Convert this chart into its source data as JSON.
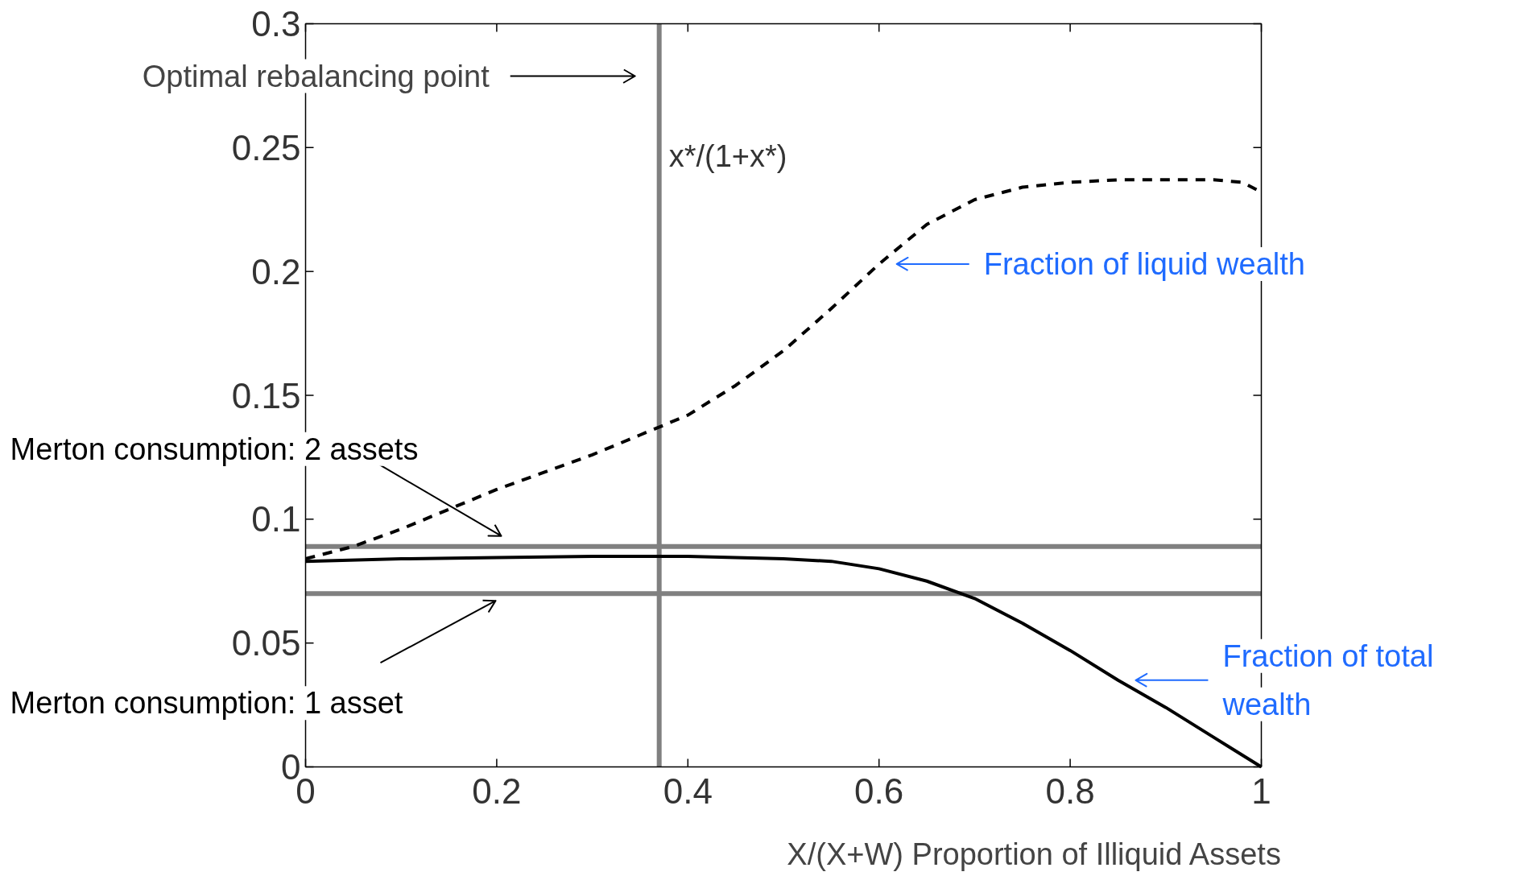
{
  "chart_data": {
    "type": "line",
    "xlabel": "X/(X+W) Proportion of Illiquid Assets",
    "xlim": [
      0,
      1
    ],
    "xticks": [
      0,
      0.2,
      0.4,
      0.6,
      0.8,
      1
    ],
    "ylim": [
      0,
      0.3
    ],
    "yticks": [
      0,
      0.05,
      0.1,
      0.15,
      0.2,
      0.25,
      0.3
    ],
    "grid": false,
    "series": [
      {
        "name": "Fraction of liquid wealth",
        "color": "#000000",
        "line_style": "dashed",
        "x": [
          0,
          0.05,
          0.1,
          0.15,
          0.2,
          0.25,
          0.3,
          0.35,
          0.4,
          0.45,
          0.5,
          0.55,
          0.6,
          0.65,
          0.7,
          0.75,
          0.8,
          0.85,
          0.9,
          0.95,
          0.98,
          1.0
        ],
        "values": [
          0.084,
          0.089,
          0.096,
          0.104,
          0.112,
          0.119,
          0.126,
          0.134,
          0.142,
          0.154,
          0.168,
          0.185,
          0.203,
          0.219,
          0.229,
          0.234,
          0.236,
          0.237,
          0.237,
          0.237,
          0.236,
          0.232
        ]
      },
      {
        "name": "Fraction of total wealth",
        "color": "#000000",
        "line_style": "solid",
        "x": [
          0,
          0.1,
          0.2,
          0.3,
          0.4,
          0.5,
          0.55,
          0.6,
          0.65,
          0.7,
          0.75,
          0.8,
          0.85,
          0.9,
          0.95,
          1.0
        ],
        "values": [
          0.083,
          0.084,
          0.0845,
          0.085,
          0.085,
          0.084,
          0.083,
          0.08,
          0.075,
          0.068,
          0.058,
          0.047,
          0.035,
          0.024,
          0.012,
          0
        ]
      }
    ],
    "ref_lines": [
      {
        "axis": "x",
        "value": 0.37,
        "label": "x*/(1+x*)",
        "color": "#808080"
      },
      {
        "axis": "y",
        "value": 0.089,
        "color": "#808080"
      },
      {
        "axis": "y",
        "value": 0.07,
        "color": "#808080"
      }
    ],
    "annotations": [
      "Optimal rebalancing point",
      "Merton consumption: 2 assets",
      "Merton consumption: 1 asset"
    ]
  }
}
